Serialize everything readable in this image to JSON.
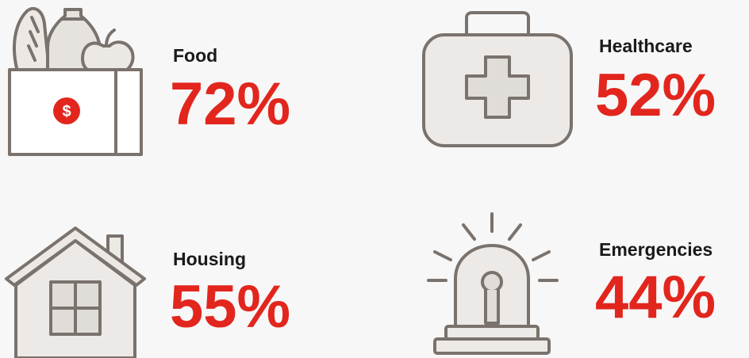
{
  "items": [
    {
      "label": "Food",
      "value": "72%",
      "icon_symbol": "$"
    },
    {
      "label": "Healthcare",
      "value": "52%"
    },
    {
      "label": "Housing",
      "value": "55%"
    },
    {
      "label": "Emergencies",
      "value": "44%"
    }
  ]
}
